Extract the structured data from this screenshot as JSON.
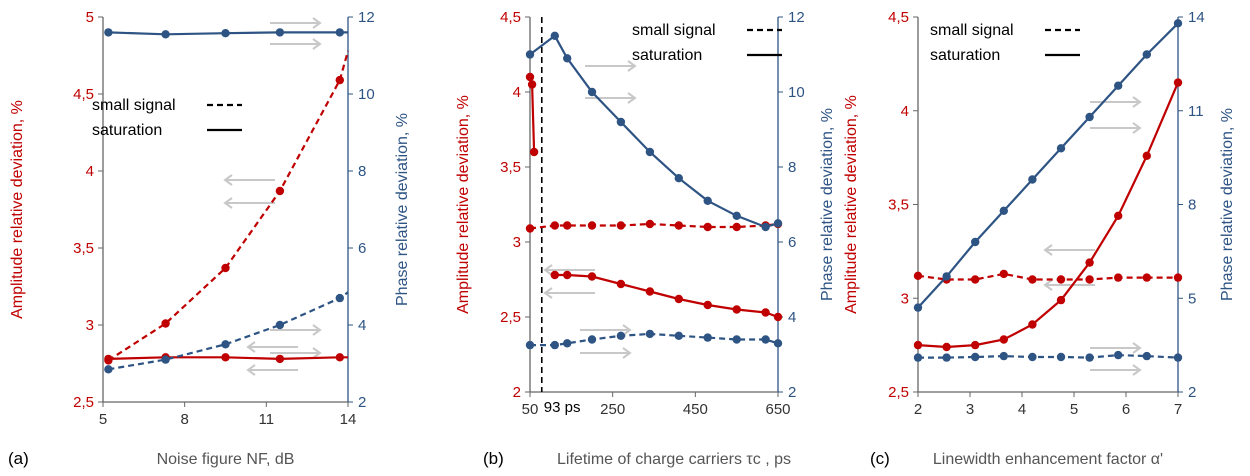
{
  "colors": {
    "red": "#c00000",
    "blue": "#2e5484",
    "axis": "#666666",
    "arrow": "#c8c8c8"
  },
  "chart_data": [
    {
      "panel": "(a)",
      "type": "line",
      "xlabel": "Noise figure NF, dB",
      "ylabel_left": "Amplitude relative deviation, %",
      "ylabel_right": "Phase relative deviation, %",
      "xlim": [
        5,
        14
      ],
      "ylim_left": [
        2.5,
        5
      ],
      "ylim_right": [
        2,
        12
      ],
      "xticks": [
        "5",
        "8",
        "11",
        "14"
      ],
      "yticks_left": [
        "2,5",
        "3",
        "3,5",
        "4",
        "4,5",
        "5"
      ],
      "yticks_right": [
        "2",
        "4",
        "6",
        "8",
        "10",
        "12"
      ],
      "legend": {
        "position": "top-left",
        "entries": [
          {
            "label": "small signal",
            "style": "dashed"
          },
          {
            "label": "saturation",
            "style": "solid"
          }
        ]
      },
      "series": [
        {
          "axis": "left",
          "color": "red",
          "style": "dashed",
          "x": [
            5.2,
            7.3,
            9.5,
            11.5,
            13.7
          ],
          "y": [
            2.77,
            3.01,
            3.37,
            3.87,
            4.59
          ],
          "extend_to": [
            14,
            4.78
          ]
        },
        {
          "axis": "left",
          "color": "red",
          "style": "solid",
          "x": [
            5.2,
            7.3,
            9.5,
            11.5,
            13.7
          ],
          "y": [
            2.78,
            2.79,
            2.79,
            2.78,
            2.79
          ],
          "extend_to": [
            14,
            2.79
          ]
        },
        {
          "axis": "right",
          "color": "blue",
          "style": "solid",
          "x": [
            5.2,
            7.3,
            9.5,
            11.5,
            13.7
          ],
          "y": [
            11.6,
            11.55,
            11.58,
            11.6,
            11.6
          ],
          "extend_to": [
            14,
            11.6
          ]
        },
        {
          "axis": "right",
          "color": "blue",
          "style": "dashed",
          "x": [
            5.2,
            7.3,
            9.5,
            11.5,
            13.7
          ],
          "y": [
            2.85,
            3.1,
            3.5,
            4.0,
            4.7
          ],
          "extend_to": [
            14,
            4.85
          ]
        }
      ]
    },
    {
      "panel": "(b)",
      "type": "line",
      "xlabel": "Lifetime of charge carriers τc , ps",
      "ylabel_left": "Amplitude relative deviation, %",
      "ylabel_right": "Phase relative deviation, %",
      "xlim": [
        50,
        650
      ],
      "ylim_left": [
        2,
        4.5
      ],
      "ylim_right": [
        2,
        12
      ],
      "xticks": [
        "50",
        "250",
        "450",
        "650"
      ],
      "yticks_left": [
        "2",
        "2,5",
        "3",
        "3,5",
        "4",
        "4,5"
      ],
      "yticks_right": [
        "2",
        "4",
        "6",
        "8",
        "10",
        "12"
      ],
      "marker_line": {
        "x": 93,
        "label": "93 ps"
      },
      "legend": {
        "position": "top-right",
        "entries": [
          {
            "label": "small signal",
            "style": "dashed"
          },
          {
            "label": "saturation",
            "style": "solid"
          }
        ]
      },
      "series": [
        {
          "axis": "left",
          "color": "red",
          "style": "solid",
          "x": [
            50,
            55,
            60
          ],
          "y": [
            4.1,
            4.05,
            3.6
          ]
        },
        {
          "axis": "left",
          "color": "red",
          "style": "solid",
          "x": [
            110,
            140,
            200,
            270,
            340,
            410,
            480,
            550,
            620,
            650
          ],
          "y": [
            2.78,
            2.78,
            2.77,
            2.72,
            2.67,
            2.62,
            2.58,
            2.55,
            2.53,
            2.5
          ]
        },
        {
          "axis": "left",
          "color": "red",
          "style": "dashed",
          "x": [
            50,
            110,
            140,
            200,
            270,
            340,
            410,
            480,
            550,
            620,
            650
          ],
          "y": [
            3.09,
            3.11,
            3.11,
            3.11,
            3.11,
            3.12,
            3.11,
            3.1,
            3.1,
            3.11,
            3.12
          ]
        },
        {
          "axis": "right",
          "color": "blue",
          "style": "solid",
          "x": [
            50,
            110,
            140,
            200,
            270,
            340,
            410,
            480,
            550,
            620,
            650
          ],
          "y": [
            11.0,
            11.5,
            10.9,
            10.0,
            9.2,
            8.4,
            7.7,
            7.1,
            6.7,
            6.4,
            6.5
          ]
        },
        {
          "axis": "right",
          "color": "blue",
          "style": "dashed",
          "x": [
            50,
            110,
            140,
            200,
            270,
            340,
            410,
            480,
            550,
            620,
            650
          ],
          "y": [
            3.25,
            3.25,
            3.3,
            3.4,
            3.5,
            3.55,
            3.5,
            3.45,
            3.4,
            3.4,
            3.3
          ]
        }
      ]
    },
    {
      "panel": "(c)",
      "type": "line",
      "xlabel": "Linewidth enhancement factor α'",
      "ylabel_left": "Amplitude relative deviation, %",
      "ylabel_right": "Phase relative deviation, %",
      "xlim": [
        2,
        7
      ],
      "ylim_left": [
        2.5,
        4.5
      ],
      "ylim_right": [
        2,
        14
      ],
      "xticks": [
        "2",
        "3",
        "4",
        "5",
        "6",
        "7"
      ],
      "yticks_left": [
        "2,5",
        "3",
        "3,5",
        "4",
        "4,5"
      ],
      "yticks_right": [
        "2",
        "5",
        "8",
        "11",
        "14"
      ],
      "legend": {
        "position": "top-left",
        "entries": [
          {
            "label": "small signal",
            "style": "dashed"
          },
          {
            "label": "saturation",
            "style": "solid"
          }
        ]
      },
      "series": [
        {
          "axis": "left",
          "color": "red",
          "style": "solid",
          "x": [
            2,
            2.55,
            3.1,
            3.65,
            4.2,
            4.75,
            5.3,
            5.85,
            6.4,
            7
          ],
          "y": [
            2.75,
            2.74,
            2.75,
            2.78,
            2.86,
            2.99,
            3.19,
            3.44,
            3.76,
            4.15
          ]
        },
        {
          "axis": "left",
          "color": "red",
          "style": "dashed",
          "x": [
            2,
            2.55,
            3.1,
            3.65,
            4.2,
            4.75,
            5.3,
            5.85,
            6.4,
            7
          ],
          "y": [
            3.12,
            3.1,
            3.1,
            3.13,
            3.1,
            3.1,
            3.1,
            3.11,
            3.11,
            3.11
          ]
        },
        {
          "axis": "right",
          "color": "blue",
          "style": "solid",
          "x": [
            2,
            2.55,
            3.1,
            3.65,
            4.2,
            4.75,
            5.3,
            5.85,
            6.4,
            7
          ],
          "y": [
            4.7,
            5.7,
            6.8,
            7.8,
            8.8,
            9.8,
            10.8,
            11.8,
            12.8,
            13.8
          ]
        },
        {
          "axis": "right",
          "color": "blue",
          "style": "dashed",
          "x": [
            2,
            2.55,
            3.1,
            3.65,
            4.2,
            4.75,
            5.3,
            5.85,
            6.4,
            7
          ],
          "y": [
            3.1,
            3.1,
            3.12,
            3.15,
            3.12,
            3.12,
            3.1,
            3.18,
            3.15,
            3.1
          ]
        }
      ]
    }
  ]
}
